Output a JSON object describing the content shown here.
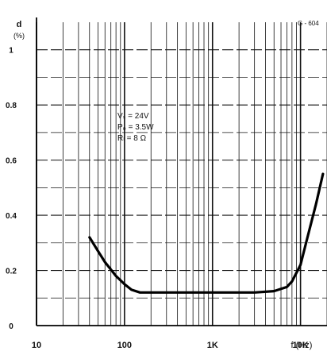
{
  "chart_data": {
    "type": "line",
    "title": "",
    "figure_code": "G - 604",
    "ylabel": "d",
    "ylabel_unit": "(%)",
    "xlabel": "f (Hz)",
    "x_scale": "log",
    "xlim": [
      10,
      20000
    ],
    "ylim": [
      0,
      1.1
    ],
    "grid": true,
    "x_tick_labels": [
      {
        "value": 10,
        "label": "10"
      },
      {
        "value": 100,
        "label": "100"
      },
      {
        "value": 1000,
        "label": "1K"
      },
      {
        "value": 10000,
        "label": "10K"
      }
    ],
    "y_tick_labels": [
      {
        "value": 0,
        "label": "0"
      },
      {
        "value": 0.2,
        "label": "0.2"
      },
      {
        "value": 0.4,
        "label": "0.4"
      },
      {
        "value": 0.6,
        "label": "0.6"
      },
      {
        "value": 0.8,
        "label": "0.8"
      },
      {
        "value": 1,
        "label": "1"
      }
    ],
    "annotations": [
      "Vₛ = 24V",
      "P₀ = 3.5W",
      "Rₗ = 8 Ω"
    ],
    "series": [
      {
        "x": [
          40,
          50,
          60,
          80,
          100,
          120,
          150,
          200,
          300,
          500,
          800,
          1000,
          2000,
          3000,
          5000,
          7000,
          8000,
          10000,
          12000,
          15000,
          18000
        ],
        "y": [
          0.32,
          0.27,
          0.23,
          0.18,
          0.15,
          0.13,
          0.12,
          0.12,
          0.12,
          0.12,
          0.12,
          0.12,
          0.12,
          0.12,
          0.125,
          0.14,
          0.16,
          0.22,
          0.32,
          0.44,
          0.55
        ]
      }
    ]
  }
}
